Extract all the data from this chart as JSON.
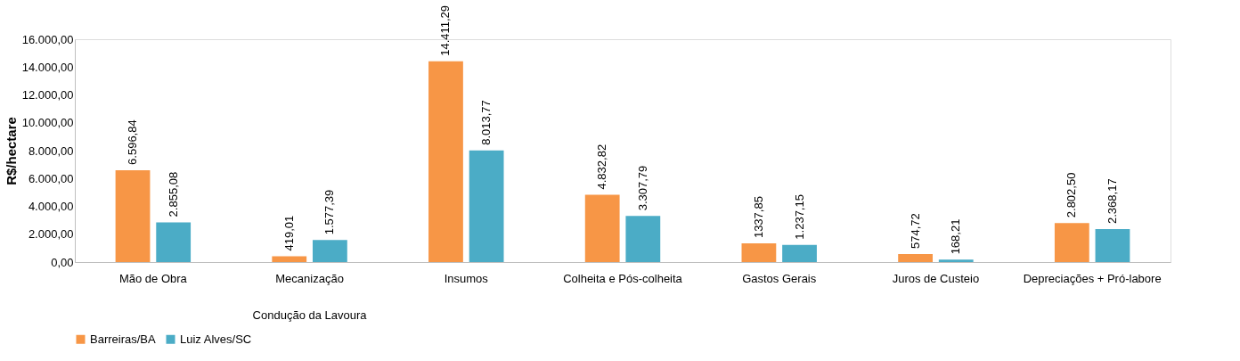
{
  "chart_data": {
    "type": "bar",
    "ylabel": "R$/hectare",
    "categories": [
      "Mão de Obra",
      "Mecanização",
      "Insumos",
      "Colheita e Pós-colheita",
      "Gastos Gerais",
      "Juros de Custeio",
      "Depreciações + Pró-labore"
    ],
    "series": [
      {
        "name": "Barreiras/BA",
        "color": "#f79646",
        "values": [
          6596.84,
          419.01,
          14411.29,
          4832.82,
          1337.85,
          574.72,
          2802.5
        ],
        "value_labels": [
          "6.596,84",
          "419,01",
          "14.411,29",
          "4.832,82",
          "1337,85",
          "574,72",
          "2.802,50"
        ]
      },
      {
        "name": "Luiz Alves/SC",
        "color": "#4bacc6",
        "values": [
          2855.08,
          1577.39,
          8013.77,
          3307.79,
          1237.15,
          168.21,
          2368.17
        ],
        "value_labels": [
          "2.855,08",
          "1.577,39",
          "8.013,77",
          "3.307,79",
          "1.237,15",
          "168,21",
          "2.368,17"
        ]
      }
    ],
    "ylim": [
      0,
      16000
    ],
    "yticks": [
      {
        "value": 0,
        "label": "0,00"
      },
      {
        "value": 2000,
        "label": "2.000,00"
      },
      {
        "value": 4000,
        "label": "4.000,00"
      },
      {
        "value": 6000,
        "label": "6.000,00"
      },
      {
        "value": 8000,
        "label": "8.000,00"
      },
      {
        "value": 10000,
        "label": "10.000,00"
      },
      {
        "value": 12000,
        "label": "12.000,00"
      },
      {
        "value": 14000,
        "label": "14.000,00"
      },
      {
        "value": 16000,
        "label": "16.000,00"
      }
    ],
    "annotations": [
      "Condução da Lavoura"
    ],
    "grid": false,
    "legend": "bottom"
  }
}
